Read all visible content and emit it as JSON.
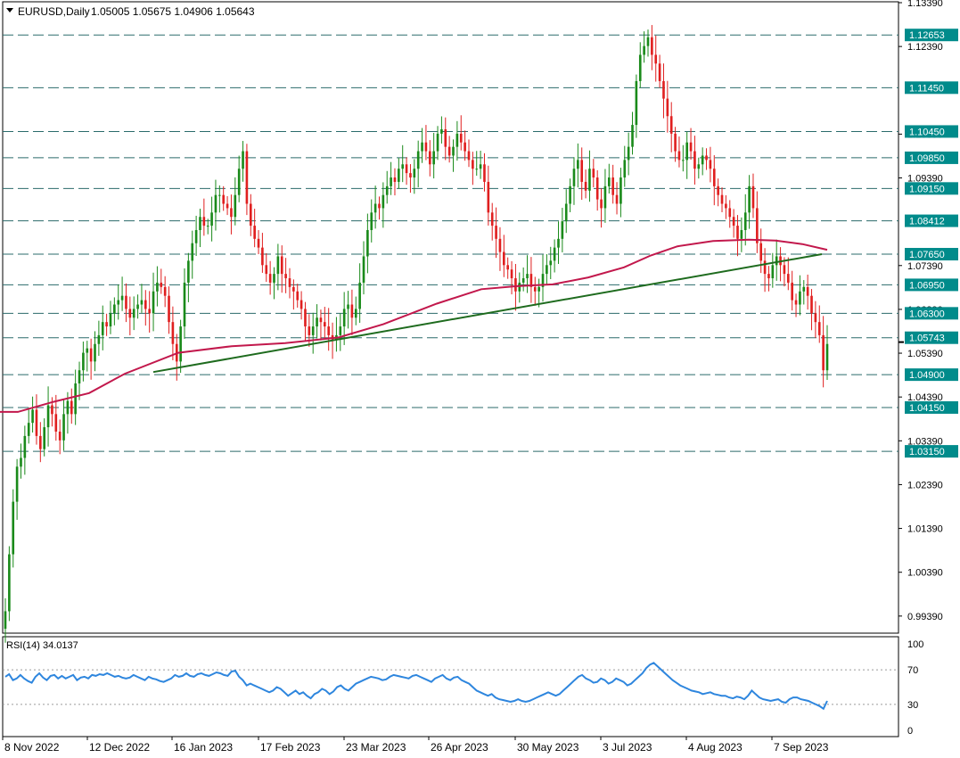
{
  "header": {
    "symbol_label": "EURUSD,Daily",
    "ohlc": "1.05005 1.05675 1.04906 1.05643"
  },
  "rsi_panel": {
    "label": "RSI(14) 34.0137",
    "levels": [
      100,
      70,
      30,
      0
    ]
  },
  "colors": {
    "up_candle": "#1a8a1a",
    "down_candle": "#e01f1f",
    "ma_line": "#c2184c",
    "trendline": "#1e6b1e",
    "hline": "#2b6b6b",
    "rsi_line": "#2e86de",
    "grid": "#000000",
    "price_tag_bg": "#008b8b"
  },
  "chart_data": {
    "type": "candlestick",
    "symbol": "EURUSD",
    "timeframe": "Daily",
    "ylim": [
      0.99,
      1.1339
    ],
    "y_ticks": [
      "1.13390",
      "1.12390",
      "1.10390",
      "1.09390",
      "1.07390",
      "1.06390",
      "1.05390",
      "1.04390",
      "1.03390",
      "1.02390",
      "1.01390",
      "1.00390",
      "0.99390"
    ],
    "x_ticks": [
      "8 Nov 2022",
      "12 Dec 2022",
      "16 Jan 2023",
      "17 Feb 2023",
      "23 Mar 2023",
      "26 Apr 2023",
      "30 May 2023",
      "3 Jul 2023",
      "4 Aug 2023",
      "7 Sep 2023"
    ],
    "horizontal_levels": [
      "1.12653",
      "1.11450",
      "1.10450",
      "1.09850",
      "1.09150",
      "1.08412",
      "1.07650",
      "1.06950",
      "1.06300",
      "1.05743",
      "1.04900",
      "1.04150",
      "1.03150"
    ],
    "current_price": "1.05643",
    "close_series": [
      0.995,
      1.008,
      1.02,
      1.028,
      1.03,
      1.035,
      1.038,
      1.041,
      1.035,
      1.032,
      1.037,
      1.042,
      1.04,
      1.036,
      1.034,
      1.04,
      1.043,
      1.04,
      1.047,
      1.05,
      1.054,
      1.055,
      1.052,
      1.056,
      1.058,
      1.061,
      1.06,
      1.063,
      1.065,
      1.066,
      1.067,
      1.064,
      1.062,
      1.064,
      1.065,
      1.066,
      1.064,
      1.063,
      1.068,
      1.07,
      1.069,
      1.067,
      1.061,
      1.056,
      1.052,
      1.06,
      1.07,
      1.075,
      1.079,
      1.082,
      1.085,
      1.083,
      1.083,
      1.086,
      1.09,
      1.09,
      1.088,
      1.087,
      1.085,
      1.09,
      1.096,
      1.1,
      1.088,
      1.083,
      1.08,
      1.078,
      1.074,
      1.072,
      1.07,
      1.072,
      1.076,
      1.072,
      1.071,
      1.069,
      1.068,
      1.066,
      1.064,
      1.06,
      1.058,
      1.06,
      1.062,
      1.061,
      1.06,
      1.058,
      1.057,
      1.058,
      1.06,
      1.064,
      1.065,
      1.062,
      1.064,
      1.07,
      1.076,
      1.082,
      1.086,
      1.088,
      1.087,
      1.09,
      1.092,
      1.094,
      1.093,
      1.096,
      1.097,
      1.095,
      1.094,
      1.096,
      1.1,
      1.102,
      1.1,
      1.097,
      1.1,
      1.104,
      1.105,
      1.101,
      1.099,
      1.101,
      1.104,
      1.102,
      1.1,
      1.098,
      1.096,
      1.096,
      1.097,
      1.093,
      1.086,
      1.083,
      1.08,
      1.077,
      1.074,
      1.073,
      1.071,
      1.068,
      1.07,
      1.071,
      1.072,
      1.069,
      1.068,
      1.069,
      1.072,
      1.074,
      1.075,
      1.078,
      1.08,
      1.084,
      1.088,
      1.092,
      1.096,
      1.098,
      1.093,
      1.091,
      1.096,
      1.094,
      1.089,
      1.087,
      1.092,
      1.094,
      1.09,
      1.088,
      1.094,
      1.098,
      1.101,
      1.106,
      1.116,
      1.122,
      1.124,
      1.126,
      1.122,
      1.12,
      1.116,
      1.112,
      1.108,
      1.104,
      1.1,
      1.098,
      1.098,
      1.102,
      1.1,
      1.096,
      1.097,
      1.099,
      1.098,
      1.096,
      1.092,
      1.09,
      1.088,
      1.087,
      1.085,
      1.083,
      1.08,
      1.082,
      1.086,
      1.092,
      1.087,
      1.079,
      1.075,
      1.072,
      1.071,
      1.074,
      1.076,
      1.074,
      1.072,
      1.07,
      1.066,
      1.065,
      1.068,
      1.069,
      1.067,
      1.063,
      1.061,
      1.058,
      1.05,
      1.056
    ],
    "ma_series": [
      [
        0,
        1.0405
      ],
      [
        20,
        1.0405
      ],
      [
        60,
        1.0428
      ],
      [
        100,
        1.0448
      ],
      [
        140,
        1.0492
      ],
      [
        200,
        1.054
      ],
      [
        260,
        1.0555
      ],
      [
        320,
        1.0562
      ],
      [
        380,
        1.0575
      ],
      [
        430,
        1.0605
      ],
      [
        490,
        1.0652
      ],
      [
        540,
        1.0685
      ],
      [
        580,
        1.0692
      ],
      [
        620,
        1.0696
      ],
      [
        660,
        1.0712
      ],
      [
        700,
        1.0735
      ],
      [
        730,
        1.0762
      ],
      [
        760,
        1.0783
      ],
      [
        800,
        1.0795
      ],
      [
        840,
        1.0798
      ],
      [
        870,
        1.0796
      ],
      [
        900,
        1.0788
      ],
      [
        928,
        1.0775
      ]
    ],
    "trendline": {
      "from": [
        172,
        1.0496
      ],
      "to": [
        922,
        1.0765
      ]
    },
    "rsi": {
      "name": "RSI(14)",
      "last_value": "34.0137",
      "ylim": [
        0,
        100
      ],
      "levels": [
        70,
        30
      ],
      "values": [
        62,
        65,
        58,
        60,
        64,
        60,
        57,
        55,
        62,
        66,
        61,
        58,
        63,
        64,
        60,
        63,
        60,
        62,
        64,
        58,
        61,
        62,
        60,
        64,
        63,
        65,
        64,
        66,
        64,
        62,
        63,
        61,
        60,
        61,
        64,
        62,
        60,
        58,
        62,
        60,
        59,
        57,
        56,
        58,
        60,
        64,
        62,
        63,
        66,
        63,
        62,
        65,
        66,
        64,
        63,
        65,
        67,
        66,
        64,
        63,
        68,
        69,
        62,
        58,
        52,
        54,
        52,
        50,
        48,
        46,
        44,
        46,
        50,
        48,
        44,
        40,
        43,
        46,
        42,
        44,
        40,
        37,
        42,
        44,
        48,
        46,
        42,
        45,
        50,
        52,
        48,
        46,
        50,
        54,
        56,
        58,
        60,
        62,
        61,
        60,
        58,
        59,
        62,
        64,
        63,
        62,
        61,
        60,
        63,
        64,
        62,
        60,
        58,
        56,
        60,
        62,
        64,
        60,
        58,
        61,
        62,
        58,
        56,
        54,
        50,
        46,
        44,
        42,
        40,
        42,
        38,
        36,
        35,
        34,
        33,
        34,
        36,
        34,
        33,
        34,
        36,
        38,
        40,
        42,
        44,
        42,
        40,
        42,
        46,
        50,
        54,
        58,
        62,
        64,
        60,
        58,
        55,
        56,
        60,
        58,
        54,
        56,
        60,
        58,
        56,
        52,
        54,
        58,
        62,
        66,
        72,
        76,
        78,
        74,
        70,
        66,
        62,
        58,
        55,
        52,
        50,
        48,
        46,
        45,
        44,
        42,
        43,
        44,
        42,
        41,
        40,
        40,
        38,
        37,
        39,
        38,
        36,
        40,
        46,
        42,
        38,
        36,
        35,
        34,
        35,
        36,
        33,
        32,
        36,
        38,
        38,
        36,
        35,
        34,
        32,
        30,
        28,
        25,
        34
      ]
    }
  }
}
